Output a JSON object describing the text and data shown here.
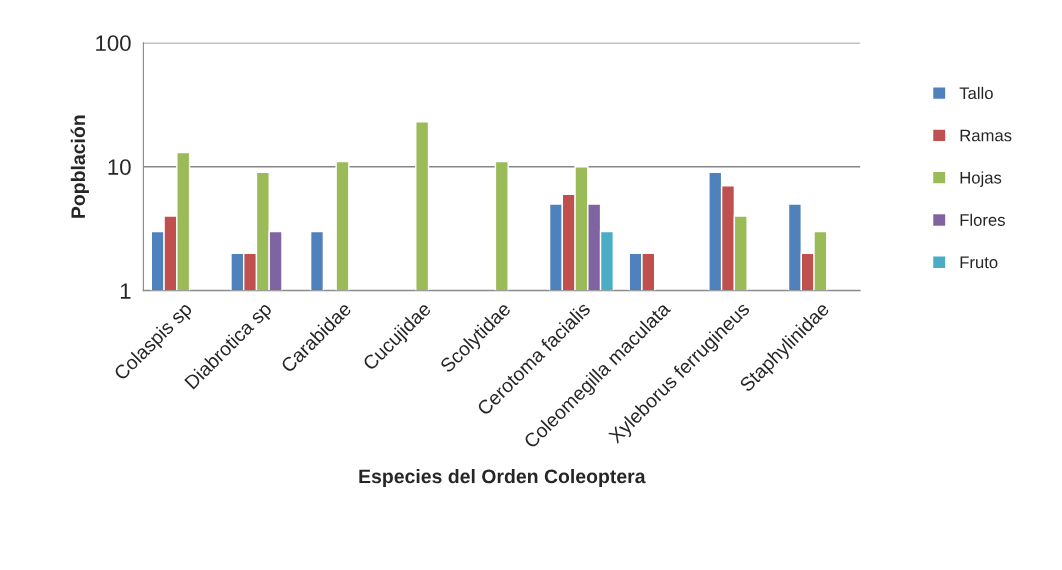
{
  "chart_data": {
    "type": "bar",
    "xlabel": "Especies del Orden Coleoptera",
    "ylabel": "Popblación",
    "categories": [
      "Colaspis sp",
      "Diabrotica sp",
      "Carabidae",
      "Cucujidae",
      "Scolytidae",
      "Cerotoma facialis",
      "Coleomegilla maculata",
      "Xyleborus ferrugineus",
      "Staphylinidae"
    ],
    "series": [
      {
        "name": "Tallo",
        "color": "#4f81bd",
        "values": [
          3,
          2,
          3,
          null,
          null,
          5,
          2,
          9,
          5
        ]
      },
      {
        "name": "Ramas",
        "color": "#c0504d",
        "values": [
          4,
          2,
          null,
          null,
          null,
          6,
          2,
          7,
          2
        ]
      },
      {
        "name": "Hojas",
        "color": "#9bbb59",
        "values": [
          13,
          9,
          11,
          23,
          11,
          10,
          null,
          4,
          3
        ]
      },
      {
        "name": "Flores",
        "color": "#8064a2",
        "values": [
          null,
          3,
          null,
          null,
          null,
          5,
          null,
          null,
          null
        ]
      },
      {
        "name": "Fruto",
        "color": "#4bacc6",
        "values": [
          null,
          null,
          null,
          null,
          null,
          3,
          null,
          null,
          null
        ]
      }
    ],
    "log": "y",
    "ylim": [
      1,
      100
    ],
    "yticks": [
      1,
      10,
      100
    ],
    "grid": "y",
    "legend": "right"
  }
}
